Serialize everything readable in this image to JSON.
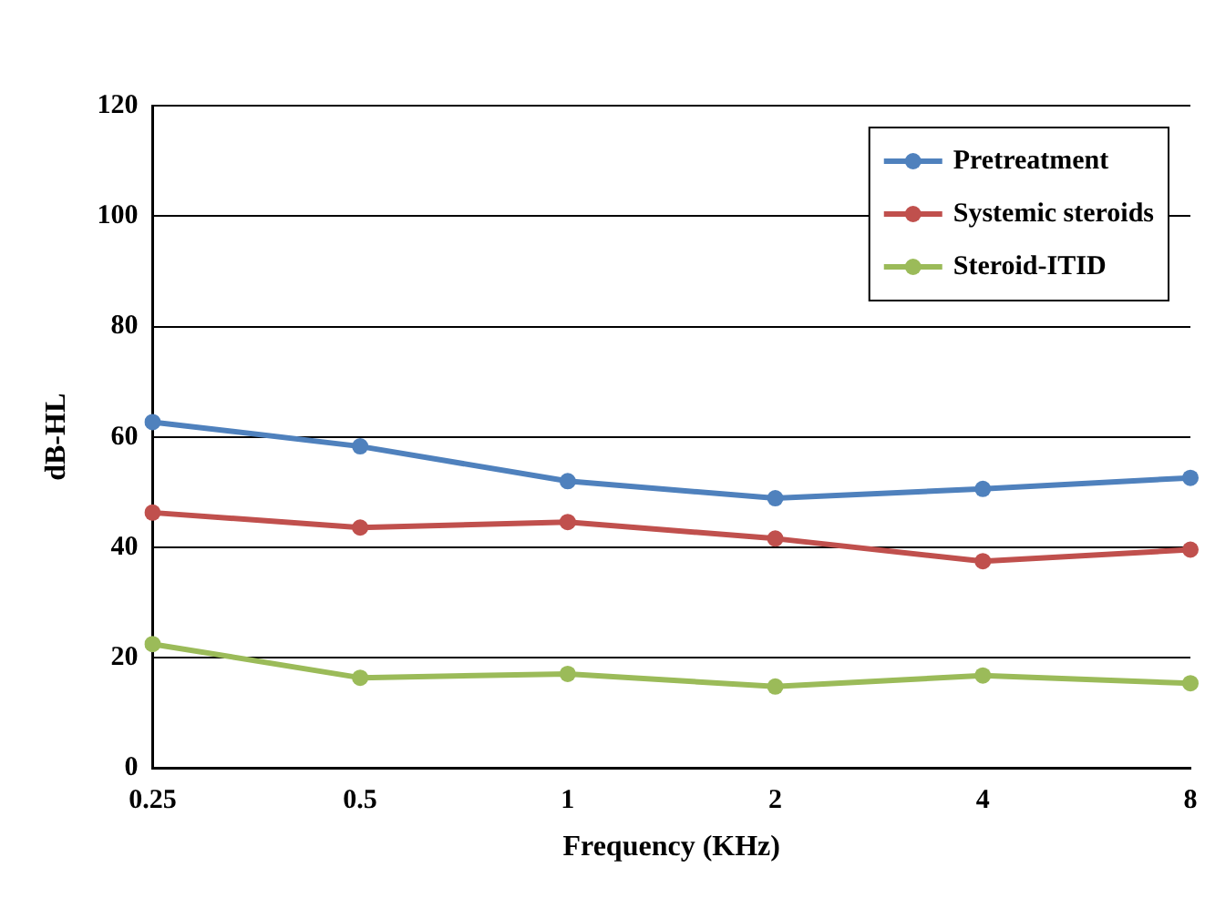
{
  "chart_data": {
    "type": "line",
    "xlabel": "Frequency (KHz)",
    "ylabel": "dB-HL",
    "categories": [
      "0.25",
      "0.5",
      "1",
      "2",
      "4",
      "8"
    ],
    "series": [
      {
        "name": "Pretreatment",
        "color": "#4f81bd",
        "values": [
          62.7,
          58.3,
          52,
          48.9,
          50.6,
          52.6
        ]
      },
      {
        "name": "Systemic steroids",
        "color": "#c0504d",
        "values": [
          46.3,
          43.6,
          44.6,
          41.6,
          37.5,
          39.6
        ]
      },
      {
        "name": "Steroid-ITID",
        "color": "#9bbb59",
        "values": [
          22.5,
          16.4,
          17.1,
          14.8,
          16.8,
          15.4
        ]
      }
    ],
    "ylim": [
      0,
      120
    ],
    "yticks": [
      0,
      20,
      40,
      60,
      80,
      100,
      120
    ],
    "grid": "y",
    "legend": "top right",
    "marker": "circle",
    "line_style": "solid"
  }
}
